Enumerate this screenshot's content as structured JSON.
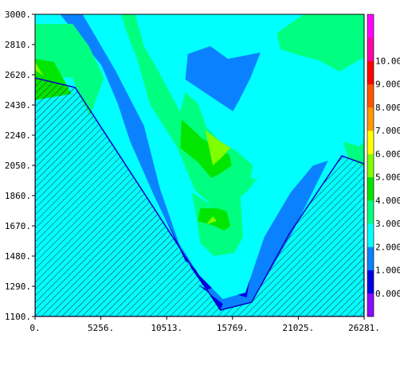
{
  "chart_data": {
    "type": "heatmap",
    "title": "",
    "xlabel": "",
    "ylabel": "",
    "xlim": [
      0,
      26281
    ],
    "ylim": [
      1100,
      3000
    ],
    "x_tick_labels": [
      "0.",
      "5256.",
      "10513.",
      "15769.",
      "21025.",
      "26281."
    ],
    "x_tick_values": [
      0,
      5256,
      10513,
      15769,
      21025,
      26281
    ],
    "y_tick_labels": [
      "1100.",
      "1290.",
      "1480.",
      "1670.",
      "1860.",
      "2050.",
      "2240.",
      "2430.",
      "2620.",
      "2810.",
      "3000."
    ],
    "y_tick_values": [
      1100,
      1290,
      1480,
      1670,
      1860,
      2050,
      2240,
      2430,
      2620,
      2810,
      3000
    ],
    "terrain_outline": [
      [
        0,
        2600
      ],
      [
        3200,
        2540
      ],
      [
        14800,
        1140
      ],
      [
        17300,
        1190
      ],
      [
        20300,
        1620
      ],
      [
        24500,
        2110
      ],
      [
        26281,
        2060
      ]
    ],
    "colorbar": {
      "labels": [
        "0.000",
        "1.000",
        "2.000",
        "3.000",
        "4.000",
        "5.000",
        "6.000",
        "7.000",
        "8.000",
        "9.000",
        "10.00"
      ],
      "levels": [
        -1,
        0,
        1,
        2,
        3,
        4,
        5,
        6,
        7,
        8,
        9,
        10,
        11
      ],
      "colors": [
        "#8a0aff",
        "#0000e6",
        "#0a82ff",
        "#00ffff",
        "#00ff80",
        "#00e600",
        "#80ff00",
        "#ffff00",
        "#ff9900",
        "#ff5500",
        "#ff0000",
        "#ff00aa",
        "#ff00ff"
      ]
    },
    "contour_fills": [
      {
        "value": 1,
        "polygon": [
          [
            2000,
            3000
          ],
          [
            3800,
            3000
          ],
          [
            6400,
            2650
          ],
          [
            8700,
            2300
          ],
          [
            10000,
            1900
          ],
          [
            11500,
            1560
          ],
          [
            13100,
            1360
          ],
          [
            15000,
            1210
          ],
          [
            16800,
            1250
          ],
          [
            18300,
            1600
          ],
          [
            20400,
            1880
          ],
          [
            22200,
            2050
          ],
          [
            23400,
            2080
          ],
          [
            20500,
            1620
          ],
          [
            17300,
            1190
          ],
          [
            14800,
            1140
          ],
          [
            13000,
            1360
          ],
          [
            11100,
            1600
          ],
          [
            9500,
            1860
          ],
          [
            7600,
            2200
          ],
          [
            6600,
            2440
          ],
          [
            5300,
            2680
          ]
        ]
      },
      {
        "value": 0,
        "polygon": [
          [
            10300,
            1730
          ],
          [
            12000,
            1450
          ],
          [
            13800,
            1330
          ],
          [
            15600,
            1250
          ],
          [
            16900,
            1220
          ],
          [
            17300,
            1400
          ],
          [
            16000,
            1330
          ],
          [
            13800,
            1270
          ],
          [
            13000,
            1300
          ],
          [
            15000,
            1180
          ],
          [
            14800,
            1140
          ],
          [
            12500,
            1400
          ],
          [
            11100,
            1610
          ]
        ]
      },
      {
        "value": 1,
        "polygon": [
          [
            12000,
            2590
          ],
          [
            15800,
            2390
          ],
          [
            16300,
            2460
          ],
          [
            17200,
            2600
          ],
          [
            18000,
            2760
          ],
          [
            15400,
            2720
          ],
          [
            14000,
            2800
          ],
          [
            12200,
            2750
          ]
        ]
      },
      {
        "value": 2,
        "polygon": [
          [
            3800,
            3000
          ],
          [
            6900,
            3000
          ],
          [
            7300,
            2890
          ],
          [
            8100,
            2730
          ],
          [
            9200,
            2430
          ],
          [
            11300,
            2170
          ],
          [
            12800,
            1890
          ],
          [
            14000,
            1810
          ],
          [
            15800,
            1810
          ],
          [
            17100,
            1900
          ],
          [
            18000,
            2000
          ],
          [
            19600,
            2200
          ],
          [
            21500,
            2200
          ],
          [
            22900,
            2180
          ],
          [
            24300,
            2200
          ],
          [
            25000,
            2100
          ],
          [
            23400,
            2080
          ],
          [
            22200,
            2050
          ],
          [
            20400,
            1880
          ],
          [
            18300,
            1600
          ],
          [
            16800,
            1250
          ],
          [
            15000,
            1210
          ],
          [
            13100,
            1360
          ],
          [
            11500,
            1560
          ],
          [
            10000,
            1900
          ],
          [
            8700,
            2300
          ],
          [
            6400,
            2650
          ]
        ]
      },
      {
        "value": 3,
        "polygon": [
          [
            6900,
            3000
          ],
          [
            8000,
            3000
          ],
          [
            8700,
            2800
          ],
          [
            9800,
            2650
          ],
          [
            11500,
            2400
          ],
          [
            12800,
            2220
          ],
          [
            13500,
            2150
          ],
          [
            14000,
            2080
          ],
          [
            15000,
            2080
          ],
          [
            16000,
            2000
          ],
          [
            17700,
            1960
          ],
          [
            18000,
            2000
          ],
          [
            17100,
            1900
          ],
          [
            15800,
            1810
          ],
          [
            14000,
            1810
          ],
          [
            12800,
            1890
          ],
          [
            11300,
            2170
          ],
          [
            9200,
            2430
          ],
          [
            8100,
            2730
          ],
          [
            7300,
            2890
          ]
        ]
      },
      {
        "value": 3,
        "polygon": [
          [
            11200,
            2280
          ],
          [
            11500,
            2160
          ],
          [
            12800,
            1890
          ],
          [
            14000,
            1880
          ],
          [
            15800,
            1820
          ],
          [
            17000,
            1900
          ],
          [
            17400,
            2050
          ],
          [
            16100,
            2140
          ],
          [
            14800,
            2200
          ],
          [
            13700,
            2290
          ],
          [
            13000,
            2440
          ],
          [
            12000,
            2510
          ]
        ]
      },
      {
        "value": 3,
        "polygon": [
          [
            12500,
            1880
          ],
          [
            12800,
            1760
          ],
          [
            13200,
            1560
          ],
          [
            14300,
            1480
          ],
          [
            15900,
            1500
          ],
          [
            16600,
            1600
          ],
          [
            16500,
            1740
          ],
          [
            16400,
            1880
          ],
          [
            15000,
            1850
          ],
          [
            13900,
            1810
          ]
        ]
      },
      {
        "value": 3,
        "polygon": [
          [
            0,
            2620
          ],
          [
            3000,
            2600
          ],
          [
            3600,
            2480
          ],
          [
            4400,
            2360
          ],
          [
            5500,
            2600
          ],
          [
            4300,
            2800
          ],
          [
            3000,
            2940
          ],
          [
            0,
            2940
          ]
        ]
      },
      {
        "value": 3,
        "polygon": [
          [
            19300,
            2880
          ],
          [
            20700,
            2960
          ],
          [
            21500,
            3000
          ],
          [
            26281,
            3000
          ],
          [
            26281,
            2730
          ],
          [
            24300,
            2640
          ],
          [
            22700,
            2710
          ],
          [
            21200,
            2740
          ],
          [
            19600,
            2780
          ]
        ]
      },
      {
        "value": 3,
        "polygon": [
          [
            24600,
            2200
          ],
          [
            25900,
            2170
          ],
          [
            26281,
            2200
          ],
          [
            26281,
            2040
          ],
          [
            25000,
            2100
          ]
        ]
      },
      {
        "value": 4,
        "polygon": [
          [
            11700,
            2340
          ],
          [
            13200,
            2230
          ],
          [
            13900,
            2190
          ],
          [
            14800,
            2140
          ],
          [
            15500,
            2120
          ],
          [
            15700,
            2050
          ],
          [
            14800,
            2000
          ],
          [
            14100,
            1970
          ],
          [
            13000,
            2070
          ],
          [
            11600,
            2160
          ]
        ]
      },
      {
        "value": 4,
        "polygon": [
          [
            13000,
            1700
          ],
          [
            14300,
            1670
          ],
          [
            15100,
            1640
          ],
          [
            15600,
            1670
          ],
          [
            15300,
            1760
          ],
          [
            14600,
            1780
          ],
          [
            13200,
            1780
          ]
        ]
      },
      {
        "value": 4,
        "polygon": [
          [
            0,
            2720
          ],
          [
            1500,
            2700
          ],
          [
            2500,
            2560
          ],
          [
            2900,
            2500
          ],
          [
            0,
            2460
          ]
        ]
      },
      {
        "value": 5,
        "polygon": [
          [
            13600,
            2270
          ],
          [
            14800,
            2200
          ],
          [
            15600,
            2160
          ],
          [
            14900,
            2100
          ],
          [
            14200,
            2050
          ]
        ]
      },
      {
        "value": 5,
        "polygon": [
          [
            13700,
            1680
          ],
          [
            14500,
            1700
          ],
          [
            14200,
            1730
          ]
        ]
      },
      {
        "value": 5,
        "polygon": [
          [
            0,
            2650
          ],
          [
            700,
            2610
          ],
          [
            0,
            2700
          ]
        ]
      }
    ]
  }
}
